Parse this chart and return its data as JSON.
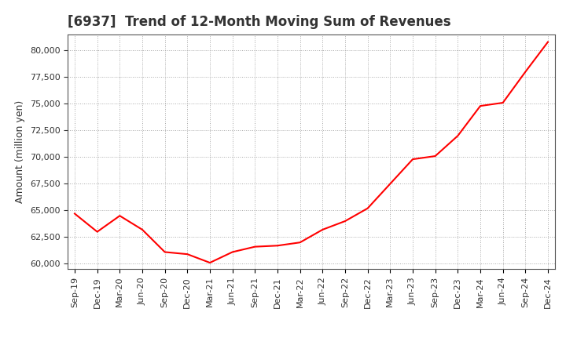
{
  "title": "[6937]  Trend of 12-Month Moving Sum of Revenues",
  "ylabel": "Amount (million yen)",
  "line_color": "#ff0000",
  "line_width": 1.5,
  "background_color": "#ffffff",
  "grid_color": "#aaaaaa",
  "ylim": [
    59500,
    81500
  ],
  "yticks": [
    60000,
    62500,
    65000,
    67500,
    70000,
    72500,
    75000,
    77500,
    80000
  ],
  "x_labels": [
    "Sep-19",
    "Dec-19",
    "Mar-20",
    "Jun-20",
    "Sep-20",
    "Dec-20",
    "Mar-21",
    "Jun-21",
    "Sep-21",
    "Dec-21",
    "Mar-22",
    "Jun-22",
    "Sep-22",
    "Dec-22",
    "Mar-23",
    "Jun-23",
    "Sep-23",
    "Dec-23",
    "Mar-24",
    "Jun-24",
    "Sep-24",
    "Dec-24"
  ],
  "values": [
    64700,
    63000,
    64500,
    63200,
    61100,
    60900,
    60100,
    61100,
    61600,
    61700,
    62000,
    63200,
    64000,
    65200,
    67500,
    69800,
    70100,
    72000,
    74800,
    75100,
    78000,
    80800
  ],
  "title_fontsize": 12,
  "title_color": "#333333",
  "ylabel_fontsize": 9,
  "tick_fontsize": 8
}
